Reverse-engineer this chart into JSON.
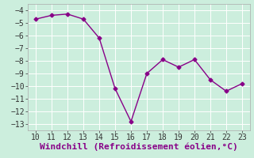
{
  "x": [
    10,
    11,
    12,
    13,
    14,
    15,
    16,
    17,
    18,
    19,
    20,
    21,
    22,
    23
  ],
  "y": [
    -4.7,
    -4.4,
    -4.3,
    -4.7,
    -6.2,
    -10.2,
    -12.8,
    -9.0,
    -7.9,
    -8.5,
    -7.9,
    -9.5,
    -10.4,
    -9.8
  ],
  "line_color": "#880088",
  "marker": "D",
  "marker_size": 2.5,
  "bg_color": "#cceedd",
  "grid_color": "#ffffff",
  "xlabel": "Windchill (Refroidissement éolien,°C)",
  "xlabel_color": "#880088",
  "xlim": [
    9.5,
    23.5
  ],
  "ylim": [
    -13.5,
    -3.5
  ],
  "xticks": [
    10,
    11,
    12,
    13,
    14,
    15,
    16,
    17,
    18,
    19,
    20,
    21,
    22,
    23
  ],
  "yticks": [
    -13,
    -12,
    -11,
    -10,
    -9,
    -8,
    -7,
    -6,
    -5,
    -4
  ],
  "tick_fontsize": 7,
  "xlabel_fontsize": 8,
  "line_width": 1.0
}
